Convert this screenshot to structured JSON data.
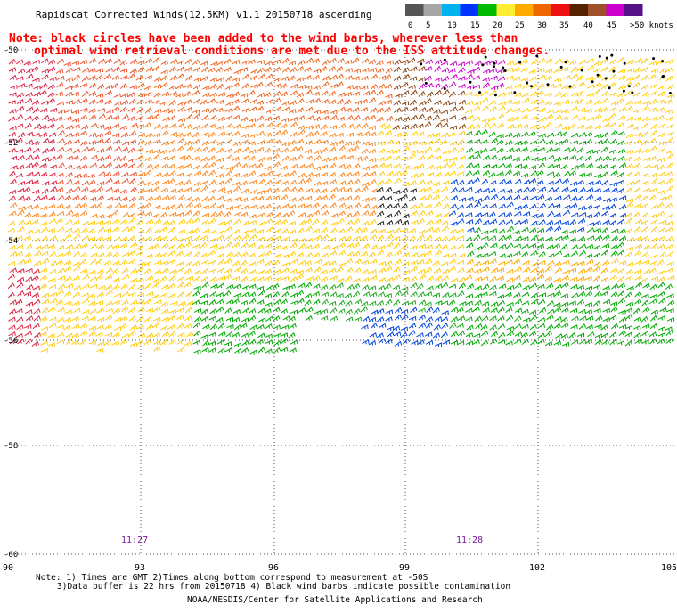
{
  "header": {
    "title": "Rapidscat Corrected Winds(12.5KM) v1.1 20150718 ascending",
    "colorbar_ticks": [
      "0",
      "5",
      "10",
      "15",
      "20",
      "25",
      "30",
      "35",
      "40",
      "45",
      ">50 knots"
    ],
    "colorbar_colors": [
      "#555555",
      "#a6a6a6",
      "#00b2ee",
      "#0033ff",
      "#00bb00",
      "#ffee33",
      "#ffaa00",
      "#ee6600",
      "#ee1111",
      "#552200",
      "#a05028",
      "#cc00cc",
      "#551188"
    ]
  },
  "notice": {
    "line1": "Note: black circles have been added to the wind barbs, wherever less than",
    "line2": "optimal wind retrieval conditions are met due to the ISS attitude changes."
  },
  "map": {
    "lat_labels": [
      "-50",
      "-52",
      "-54",
      "-56",
      "-58",
      "-60"
    ],
    "lon_labels": [
      "90",
      "93",
      "96",
      "99",
      "102",
      "105"
    ],
    "time_labels": [
      "11:27",
      "11:28"
    ]
  },
  "footer": {
    "note_line1": "Note: 1) Times are GMT 2)Times along bottom correspond to measurement at -50S",
    "note_line2": "3)Data buffer is 22 hrs from 20150718 4) Black wind barbs indicate possible contamination",
    "credit": "NOAA/NESDIS/Center for Satellite Applications and Research"
  }
}
